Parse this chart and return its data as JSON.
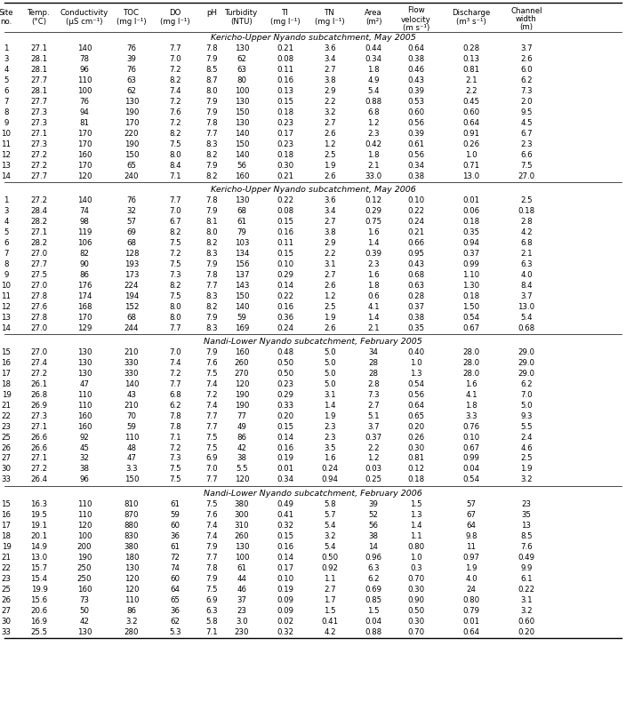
{
  "col_headers_r1": [
    "Site",
    "Temp.",
    "Conductivity",
    "TOC",
    "DO",
    "pH",
    "Turbidity",
    "TI",
    "TN",
    "Area",
    "Flow",
    "Discharge",
    "Channel"
  ],
  "col_headers_r2": [
    "no.",
    "(°C)",
    "(µS cm⁻¹)",
    "(mg l⁻¹)",
    "(mg l⁻¹)",
    "",
    "(NTU)",
    "(mg l⁻¹)",
    "(mg l⁻¹)",
    "(m²)",
    "velocity\n(m s⁻¹)",
    "(m³ s⁻¹)",
    "width\n(m)"
  ],
  "section_labels": [
    "Kericho-Upper Nyando subcatchment, May 2005",
    "Kericho-Upper Nyando subcatchment, May 2006",
    "Nandi-Lower Nyando subcatchment, February 2005",
    "Nandi-Lower Nyando subcatchment, February 2006"
  ],
  "sections": [
    [
      [
        "1",
        "27.1",
        "140",
        "76",
        "7.7",
        "7.8",
        "130",
        "0.21",
        "3.6",
        "0.44",
        "0.64",
        "0.28",
        "3.7"
      ],
      [
        "3",
        "28.1",
        "78",
        "39",
        "7.0",
        "7.9",
        "62",
        "0.08",
        "3.4",
        "0.34",
        "0.38",
        "0.13",
        "2.6"
      ],
      [
        "4",
        "28.1",
        "96",
        "76",
        "7.2",
        "8.5",
        "63",
        "0.11",
        "2.7",
        "1.8",
        "0.46",
        "0.81",
        "6.0"
      ],
      [
        "5",
        "27.7",
        "110",
        "63",
        "8.2",
        "8.7",
        "80",
        "0.16",
        "3.8",
        "4.9",
        "0.43",
        "2.1",
        "6.2"
      ],
      [
        "6",
        "28.1",
        "100",
        "62",
        "7.4",
        "8.0",
        "100",
        "0.13",
        "2.9",
        "5.4",
        "0.39",
        "2.2",
        "7.3"
      ],
      [
        "7",
        "27.7",
        "76",
        "130",
        "7.2",
        "7.9",
        "130",
        "0.15",
        "2.2",
        "0.88",
        "0.53",
        "0.45",
        "2.0"
      ],
      [
        "8",
        "27.3",
        "94",
        "190",
        "7.6",
        "7.9",
        "150",
        "0.18",
        "3.2",
        "6.8",
        "0.60",
        "0.60",
        "9.5"
      ],
      [
        "9",
        "27.3",
        "81",
        "170",
        "7.2",
        "7.8",
        "130",
        "0.23",
        "2.7",
        "1.2",
        "0.56",
        "0.64",
        "4.5"
      ],
      [
        "10",
        "27.1",
        "170",
        "220",
        "8.2",
        "7.7",
        "140",
        "0.17",
        "2.6",
        "2.3",
        "0.39",
        "0.91",
        "6.7"
      ],
      [
        "11",
        "27.3",
        "170",
        "190",
        "7.5",
        "8.3",
        "150",
        "0.23",
        "1.2",
        "0.42",
        "0.61",
        "0.26",
        "2.3"
      ],
      [
        "12",
        "27.2",
        "160",
        "150",
        "8.0",
        "8.2",
        "140",
        "0.18",
        "2.5",
        "1.8",
        "0.56",
        "1.0",
        "6.6"
      ],
      [
        "13",
        "27.2",
        "170",
        "65",
        "8.4",
        "7.9",
        "56",
        "0.30",
        "1.9",
        "2.1",
        "0.34",
        "0.71",
        "7.5"
      ],
      [
        "14",
        "27.7",
        "120",
        "240",
        "7.1",
        "8.2",
        "160",
        "0.21",
        "2.6",
        "33.0",
        "0.38",
        "13.0",
        "27.0"
      ]
    ],
    [
      [
        "1",
        "27.2",
        "140",
        "76",
        "7.7",
        "7.8",
        "130",
        "0.22",
        "3.6",
        "0.12",
        "0.10",
        "0.01",
        "2.5"
      ],
      [
        "3",
        "28.4",
        "74",
        "32",
        "7.0",
        "7.9",
        "68",
        "0.08",
        "3.4",
        "0.29",
        "0.22",
        "0.06",
        "0.18"
      ],
      [
        "4",
        "28.2",
        "98",
        "57",
        "6.7",
        "8.1",
        "61",
        "0.15",
        "2.7",
        "0.75",
        "0.24",
        "0.18",
        "2.8"
      ],
      [
        "5",
        "27.1",
        "119",
        "69",
        "8.2",
        "8.0",
        "79",
        "0.16",
        "3.8",
        "1.6",
        "0.21",
        "0.35",
        "4.2"
      ],
      [
        "6",
        "28.2",
        "106",
        "68",
        "7.5",
        "8.2",
        "103",
        "0.11",
        "2.9",
        "1.4",
        "0.66",
        "0.94",
        "6.8"
      ],
      [
        "7",
        "27.0",
        "82",
        "128",
        "7.2",
        "8.3",
        "134",
        "0.15",
        "2.2",
        "0.39",
        "0.95",
        "0.37",
        "2.1"
      ],
      [
        "8",
        "27.7",
        "90",
        "193",
        "7.5",
        "7.9",
        "156",
        "0.10",
        "3.1",
        "2.3",
        "0.43",
        "0.99",
        "6.3"
      ],
      [
        "9",
        "27.5",
        "86",
        "173",
        "7.3",
        "7.8",
        "137",
        "0.29",
        "2.7",
        "1.6",
        "0.68",
        "1.10",
        "4.0"
      ],
      [
        "10",
        "27.0",
        "176",
        "224",
        "8.2",
        "7.7",
        "143",
        "0.14",
        "2.6",
        "1.8",
        "0.63",
        "1.30",
        "8.4"
      ],
      [
        "11",
        "27.8",
        "174",
        "194",
        "7.5",
        "8.3",
        "150",
        "0.22",
        "1.2",
        "0.6",
        "0.28",
        "0.18",
        "3.7"
      ],
      [
        "12",
        "27.6",
        "168",
        "152",
        "8.0",
        "8.2",
        "140",
        "0.16",
        "2.5",
        "4.1",
        "0.37",
        "1.50",
        "13.0"
      ],
      [
        "13",
        "27.8",
        "170",
        "68",
        "8.0",
        "7.9",
        "59",
        "0.36",
        "1.9",
        "1.4",
        "0.38",
        "0.54",
        "5.4"
      ],
      [
        "14",
        "27.0",
        "129",
        "244",
        "7.7",
        "8.3",
        "169",
        "0.24",
        "2.6",
        "2.1",
        "0.35",
        "0.67",
        "0.68"
      ]
    ],
    [
      [
        "15",
        "27.0",
        "130",
        "210",
        "7.0",
        "7.9",
        "160",
        "0.48",
        "5.0",
        "34",
        "0.40",
        "28.0",
        "29.0"
      ],
      [
        "16",
        "27.4",
        "130",
        "330",
        "7.4",
        "7.6",
        "260",
        "0.50",
        "5.0",
        "28",
        "1.0",
        "28.0",
        "29.0"
      ],
      [
        "17",
        "27.2",
        "130",
        "330",
        "7.2",
        "7.5",
        "270",
        "0.50",
        "5.0",
        "28",
        "1.3",
        "28.0",
        "29.0"
      ],
      [
        "18",
        "26.1",
        "47",
        "140",
        "7.7",
        "7.4",
        "120",
        "0.23",
        "5.0",
        "2.8",
        "0.54",
        "1.6",
        "6.2"
      ],
      [
        "19",
        "26.8",
        "110",
        "43",
        "6.8",
        "7.2",
        "190",
        "0.29",
        "3.1",
        "7.3",
        "0.56",
        "4.1",
        "7.0"
      ],
      [
        "21",
        "26.9",
        "110",
        "210",
        "6.2",
        "7.4",
        "190",
        "0.33",
        "1.4",
        "2.7",
        "0.64",
        "1.8",
        "5.0"
      ],
      [
        "22",
        "27.3",
        "160",
        "70",
        "7.8",
        "7.7",
        "77",
        "0.20",
        "1.9",
        "5.1",
        "0.65",
        "3.3",
        "9.3"
      ],
      [
        "23",
        "27.1",
        "160",
        "59",
        "7.8",
        "7.7",
        "49",
        "0.15",
        "2.3",
        "3.7",
        "0.20",
        "0.76",
        "5.5"
      ],
      [
        "25",
        "26.6",
        "92",
        "110",
        "7.1",
        "7.5",
        "86",
        "0.14",
        "2.3",
        "0.37",
        "0.26",
        "0.10",
        "2.4"
      ],
      [
        "26",
        "26.6",
        "45",
        "48",
        "7.2",
        "7.5",
        "42",
        "0.16",
        "3.5",
        "2.2",
        "0.30",
        "0.67",
        "4.6"
      ],
      [
        "27",
        "27.1",
        "32",
        "47",
        "7.3",
        "6.9",
        "38",
        "0.19",
        "1.6",
        "1.2",
        "0.81",
        "0.99",
        "2.5"
      ],
      [
        "30",
        "27.2",
        "38",
        "3.3",
        "7.5",
        "7.0",
        "5.5",
        "0.01",
        "0.24",
        "0.03",
        "0.12",
        "0.04",
        "1.9"
      ],
      [
        "33",
        "26.4",
        "96",
        "150",
        "7.5",
        "7.7",
        "120",
        "0.34",
        "0.94",
        "0.25",
        "0.18",
        "0.54",
        "3.2"
      ]
    ],
    [
      [
        "15",
        "16.3",
        "110",
        "810",
        "61",
        "7.5",
        "380",
        "0.49",
        "5.8",
        "39",
        "1.5",
        "57",
        "23"
      ],
      [
        "16",
        "19.5",
        "110",
        "870",
        "59",
        "7.6",
        "300",
        "0.41",
        "5.7",
        "52",
        "1.3",
        "67",
        "35"
      ],
      [
        "17",
        "19.1",
        "120",
        "880",
        "60",
        "7.4",
        "310",
        "0.32",
        "5.4",
        "56",
        "1.4",
        "64",
        "13"
      ],
      [
        "18",
        "20.1",
        "100",
        "830",
        "36",
        "7.4",
        "260",
        "0.15",
        "3.2",
        "38",
        "1.1",
        "9.8",
        "8.5"
      ],
      [
        "19",
        "14.9",
        "200",
        "380",
        "61",
        "7.9",
        "130",
        "0.16",
        "5.4",
        "14",
        "0.80",
        "11",
        "7.6"
      ],
      [
        "21",
        "13.0",
        "190",
        "180",
        "72",
        "7.7",
        "100",
        "0.14",
        "0.50",
        "0.96",
        "1.0",
        "0.97",
        "0.49"
      ],
      [
        "22",
        "15.7",
        "250",
        "130",
        "74",
        "7.8",
        "61",
        "0.17",
        "0.92",
        "6.3",
        "0.3",
        "1.9",
        "9.9"
      ],
      [
        "23",
        "15.4",
        "250",
        "120",
        "60",
        "7.9",
        "44",
        "0.10",
        "1.1",
        "6.2",
        "0.70",
        "4.0",
        "6.1"
      ],
      [
        "25",
        "19.9",
        "160",
        "120",
        "64",
        "7.5",
        "46",
        "0.19",
        "2.7",
        "0.69",
        "0.30",
        "24",
        "0.22"
      ],
      [
        "26",
        "15.6",
        "73",
        "110",
        "65",
        "6.9",
        "37",
        "0.09",
        "1.7",
        "0.85",
        "0.90",
        "0.80",
        "3.1"
      ],
      [
        "27",
        "20.6",
        "50",
        "86",
        "36",
        "6.3",
        "23",
        "0.09",
        "1.5",
        "1.5",
        "0.50",
        "0.79",
        "3.2"
      ],
      [
        "30",
        "16.9",
        "42",
        "3.2",
        "62",
        "5.8",
        "3.0",
        "0.02",
        "0.41",
        "0.04",
        "0.30",
        "0.01",
        "0.60"
      ],
      [
        "33",
        "25.5",
        "130",
        "280",
        "5.3",
        "7.1",
        "230",
        "0.32",
        "4.2",
        "0.88",
        "0.70",
        "0.64",
        "0.20"
      ]
    ]
  ]
}
